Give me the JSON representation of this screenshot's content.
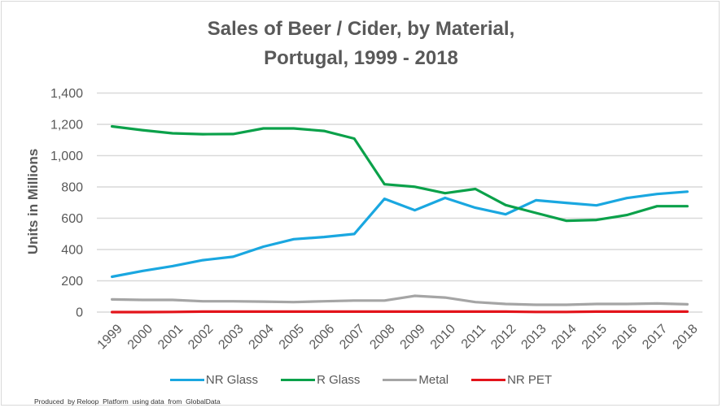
{
  "chart_data": {
    "type": "line",
    "title": [
      "Sales of Beer / Cider, by Material,",
      "Portugal, 1999 - 2018"
    ],
    "xlabel": "",
    "ylabel": "Units in Millions",
    "ylim": [
      0,
      1400
    ],
    "yticks": [
      0,
      200,
      400,
      600,
      800,
      1000,
      1200,
      1400
    ],
    "ytick_labels": [
      "0",
      "200",
      "400",
      "600",
      "800",
      "1,000",
      "1,200",
      "1,400"
    ],
    "grid": true,
    "legend_position": "bottom",
    "x": [
      "1999",
      "2000",
      "2001",
      "2002",
      "2003",
      "2004",
      "2005",
      "2006",
      "2007",
      "2008",
      "2009",
      "2010",
      "2011",
      "2012",
      "2013",
      "2014",
      "2015",
      "2016",
      "2017",
      "2018"
    ],
    "series": [
      {
        "name": "NR Glass",
        "color": "#1aa7e0",
        "values": [
          226,
          263,
          294,
          332,
          354,
          418,
          466,
          480,
          499,
          724,
          651,
          730,
          667,
          625,
          715,
          698,
          682,
          729,
          755,
          770
        ]
      },
      {
        "name": "R Glass",
        "color": "#0ba14a",
        "values": [
          1187,
          1163,
          1143,
          1137,
          1138,
          1174,
          1174,
          1158,
          1109,
          817,
          801,
          760,
          787,
          684,
          634,
          584,
          589,
          620,
          677,
          677
        ]
      },
      {
        "name": "Metal",
        "color": "#a5a5a5",
        "values": [
          81,
          78,
          78,
          69,
          69,
          67,
          64,
          69,
          74,
          74,
          104,
          93,
          64,
          52,
          47,
          47,
          52,
          52,
          55,
          50
        ]
      },
      {
        "name": "NR PET",
        "color": "#e3141b",
        "values": [
          0,
          0,
          1,
          3,
          3,
          3,
          3,
          3,
          3,
          3,
          3,
          3,
          3,
          3,
          1,
          1,
          3,
          3,
          3,
          3
        ]
      }
    ]
  },
  "footer": "Produced  by Reloop  Platform  using data  from  GlobalData"
}
